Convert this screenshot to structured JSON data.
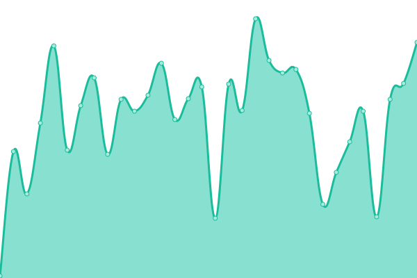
{
  "chart_data": {
    "type": "area",
    "title": "",
    "xlabel": "",
    "ylabel": "",
    "grid": false,
    "smooth": true,
    "ylim": [
      0,
      400
    ],
    "x": [
      0,
      1,
      2,
      3,
      4,
      5,
      6,
      7,
      8,
      9,
      10,
      11,
      12,
      13,
      14,
      15,
      16,
      17,
      18,
      19,
      20,
      21,
      22,
      23,
      24,
      25,
      26,
      27,
      28,
      29,
      30,
      31
    ],
    "series": [
      {
        "values": [
          3,
          182,
          121,
          223,
          334,
          184,
          248,
          288,
          178,
          257,
          240,
          263,
          309,
          228,
          258,
          275,
          86,
          279,
          241,
          373,
          313,
          295,
          300,
          237,
          106,
          152,
          196,
          240,
          88,
          257,
          280,
          339
        ],
        "fill_color": "#88e0d0",
        "line_color": "#1abc9c",
        "marker_color": "#a8ebdc"
      }
    ]
  }
}
